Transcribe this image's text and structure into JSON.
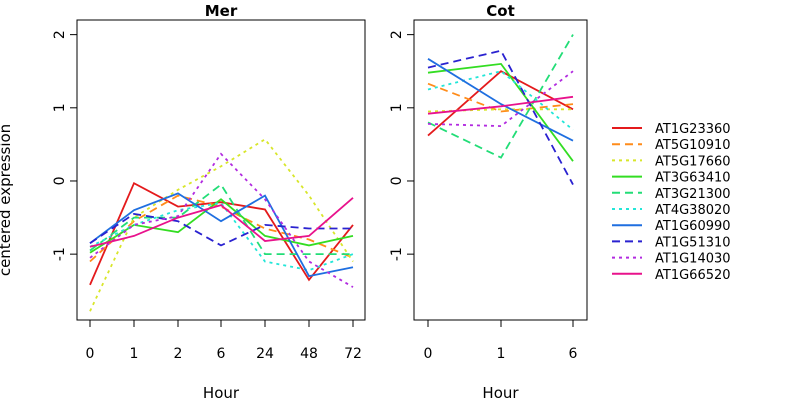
{
  "figure": {
    "ylabel": "centered expression"
  },
  "chart_data": [
    {
      "type": "line",
      "title": "Mer",
      "xlabel": "Hour",
      "ylabel": "centered expression",
      "categories": [
        "0",
        "1",
        "2",
        "6",
        "24",
        "48",
        "72"
      ],
      "ylim": [
        -1.9,
        2.2
      ],
      "yticks": [
        -1,
        0,
        1,
        2
      ],
      "series": [
        {
          "name": "AT1G23360",
          "values": [
            -1.42,
            -0.03,
            -0.35,
            -0.29,
            -0.39,
            -1.35,
            -0.6
          ]
        },
        {
          "name": "AT5G10910",
          "values": [
            -1.1,
            -0.55,
            -0.2,
            -0.35,
            -0.65,
            -0.8,
            -1.05
          ]
        },
        {
          "name": "AT5G17660",
          "values": [
            -1.78,
            -0.5,
            -0.12,
            0.2,
            0.57,
            -0.2,
            -1.1
          ]
        },
        {
          "name": "AT3G63410",
          "values": [
            -0.98,
            -0.6,
            -0.7,
            -0.25,
            -0.75,
            -0.88,
            -0.75
          ]
        },
        {
          "name": "AT3G21300",
          "values": [
            -0.95,
            -0.5,
            -0.5,
            -0.05,
            -1.0,
            -1.0,
            -1.0
          ]
        },
        {
          "name": "AT4G38020",
          "values": [
            -0.9,
            -0.6,
            -0.4,
            -0.3,
            -1.1,
            -1.22,
            -1.0
          ]
        },
        {
          "name": "AT1G60990",
          "values": [
            -0.85,
            -0.4,
            -0.17,
            -0.55,
            -0.2,
            -1.3,
            -1.18
          ]
        },
        {
          "name": "AT1G51310",
          "values": [
            -0.85,
            -0.45,
            -0.55,
            -0.88,
            -0.6,
            -0.65,
            -0.65
          ]
        },
        {
          "name": "AT1G14030",
          "values": [
            -1.05,
            -0.6,
            -0.48,
            0.37,
            -0.25,
            -1.1,
            -1.45
          ]
        },
        {
          "name": "AT1G66520",
          "values": [
            -0.9,
            -0.75,
            -0.5,
            -0.33,
            -0.82,
            -0.75,
            -0.23
          ]
        }
      ]
    },
    {
      "type": "line",
      "title": "Cot",
      "xlabel": "Hour",
      "categories": [
        "0",
        "1",
        "6"
      ],
      "ylim": [
        -1.9,
        2.2
      ],
      "yticks": [
        -1,
        0,
        1,
        2
      ],
      "series": [
        {
          "name": "AT1G23360",
          "values": [
            0.62,
            1.5,
            0.98
          ]
        },
        {
          "name": "AT5G10910",
          "values": [
            1.33,
            0.95,
            1.05
          ]
        },
        {
          "name": "AT5G17660",
          "values": [
            0.95,
            0.98,
            0.98
          ]
        },
        {
          "name": "AT3G63410",
          "values": [
            1.48,
            1.6,
            0.27
          ]
        },
        {
          "name": "AT3G21300",
          "values": [
            0.8,
            0.32,
            2.0
          ]
        },
        {
          "name": "AT4G38020",
          "values": [
            1.25,
            1.5,
            0.7
          ]
        },
        {
          "name": "AT1G60990",
          "values": [
            1.67,
            1.05,
            0.55
          ]
        },
        {
          "name": "AT1G51310",
          "values": [
            1.55,
            1.78,
            -0.05
          ]
        },
        {
          "name": "AT1G14030",
          "values": [
            0.78,
            0.75,
            1.5
          ]
        },
        {
          "name": "AT1G66520",
          "values": [
            0.92,
            1.02,
            1.15
          ]
        }
      ]
    }
  ],
  "legend": {
    "placement": "right",
    "entries": [
      {
        "name": "AT1G23360",
        "color": "#e41a1c",
        "dash": "solid"
      },
      {
        "name": "AT5G10910",
        "color": "#ff8c1a",
        "dash": "dashed"
      },
      {
        "name": "AT5G17660",
        "color": "#d8e62a",
        "dash": "dotted"
      },
      {
        "name": "AT3G63410",
        "color": "#33dd22",
        "dash": "solid"
      },
      {
        "name": "AT3G21300",
        "color": "#22dd77",
        "dash": "dashed"
      },
      {
        "name": "AT4G38020",
        "color": "#22e6d8",
        "dash": "dotted"
      },
      {
        "name": "AT1G60990",
        "color": "#1f6fe0",
        "dash": "solid"
      },
      {
        "name": "AT1G51310",
        "color": "#2a22d0",
        "dash": "dashed"
      },
      {
        "name": "AT1G14030",
        "color": "#b22be0",
        "dash": "dotted"
      },
      {
        "name": "AT1G66520",
        "color": "#e8128c",
        "dash": "solid"
      }
    ]
  }
}
